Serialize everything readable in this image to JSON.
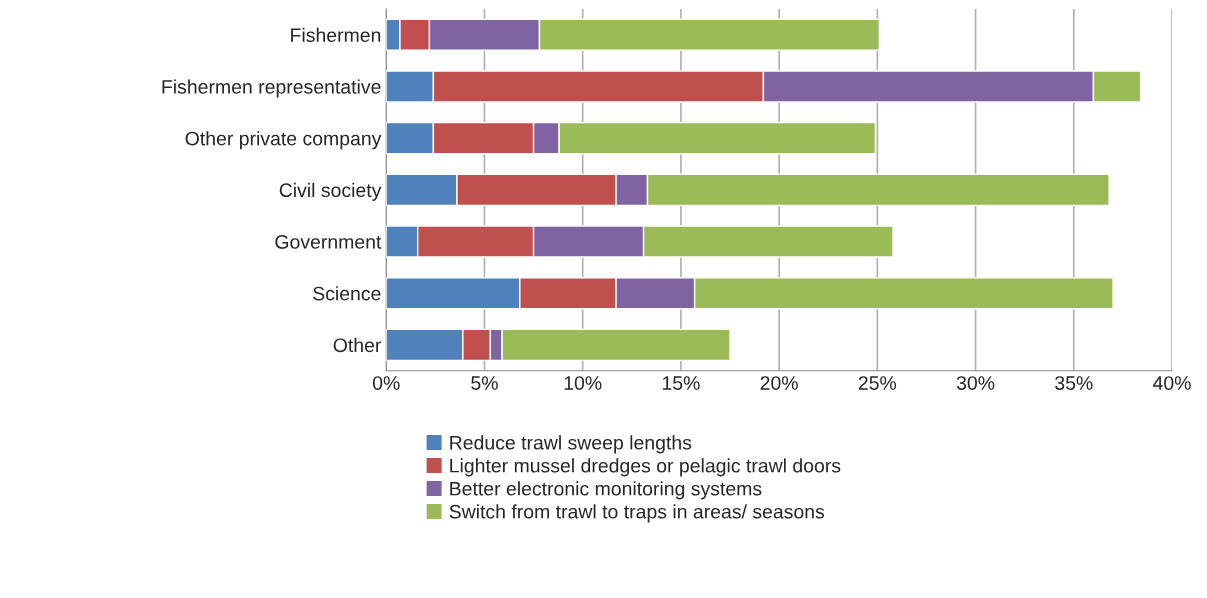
{
  "chart_data": {
    "type": "bar",
    "orientation": "horizontal",
    "stacked": true,
    "categories": [
      "Fishermen",
      "Fishermen representative",
      "Other private company",
      "Civil society",
      "Government",
      "Science",
      "Other"
    ],
    "series": [
      {
        "name": "Reduce trawl sweep lengths",
        "color": "#4f81bd",
        "values": [
          0.7,
          2.4,
          2.4,
          3.6,
          1.6,
          6.8,
          3.9
        ]
      },
      {
        "name": "Lighter mussel dredges or pelagic trawl doors",
        "color": "#c0504d",
        "values": [
          1.5,
          16.8,
          5.1,
          8.1,
          5.9,
          4.9,
          1.4
        ]
      },
      {
        "name": "Better electronic monitoring systems",
        "color": "#8064a2",
        "values": [
          5.6,
          16.8,
          1.3,
          1.6,
          5.6,
          4.0,
          0.6
        ]
      },
      {
        "name": "Switch from trawl to traps in areas/ seasons",
        "color": "#9bbb59",
        "values": [
          17.3,
          2.4,
          16.1,
          23.5,
          12.7,
          21.3,
          11.6
        ]
      }
    ],
    "xlim": [
      0,
      40
    ],
    "xticks": [
      {
        "value": 0,
        "label": "0%"
      },
      {
        "value": 5,
        "label": "5%"
      },
      {
        "value": 10,
        "label": "10%"
      },
      {
        "value": 15,
        "label": "15%"
      },
      {
        "value": 20,
        "label": "20%"
      },
      {
        "value": 25,
        "label": "25%"
      },
      {
        "value": 30,
        "label": "30%"
      },
      {
        "value": 35,
        "label": "35%"
      },
      {
        "value": 40,
        "label": "40%"
      }
    ],
    "grid": "x",
    "legend": "bottom"
  }
}
